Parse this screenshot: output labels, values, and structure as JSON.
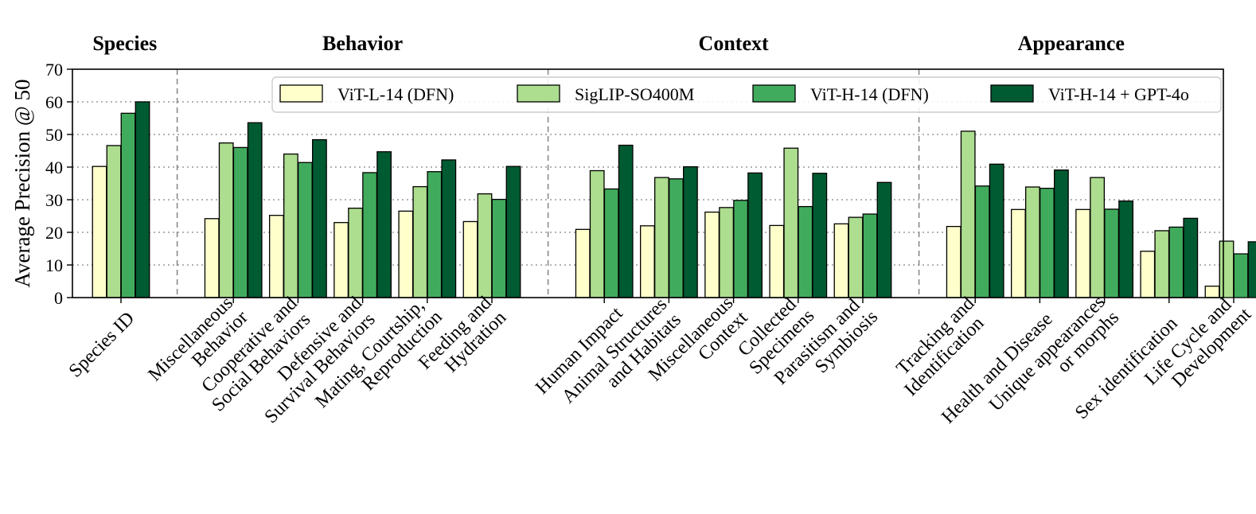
{
  "chart_data": {
    "type": "bar",
    "ylabel": "Average Precision @ 50",
    "ylim": [
      0,
      70
    ],
    "yticks": [
      0,
      10,
      20,
      30,
      40,
      50,
      60,
      70
    ],
    "grid": true,
    "legend_position": "top",
    "groups": [
      {
        "title": "Species",
        "categories": [
          0
        ]
      },
      {
        "title": "Behavior",
        "categories": [
          1,
          2,
          3,
          4,
          5
        ]
      },
      {
        "title": "Context",
        "categories": [
          6,
          7,
          8,
          9,
          10
        ]
      },
      {
        "title": "Appearance",
        "categories": [
          11,
          12,
          13,
          14,
          15
        ]
      }
    ],
    "categories": [
      [
        "Species ID"
      ],
      [
        "Miscellaneous",
        "Behavior"
      ],
      [
        "Cooperative and",
        "Social Behaviors"
      ],
      [
        "Defensive and",
        "Survival Behaviors"
      ],
      [
        "Mating, Courtship,",
        "Reproduction"
      ],
      [
        "Feeding and",
        "Hydration"
      ],
      [
        "Human Impact"
      ],
      [
        "Animal Structures",
        "and Habitats"
      ],
      [
        "Miscellaneous",
        "Context"
      ],
      [
        "Collected",
        "Specimens"
      ],
      [
        "Parasitism and",
        "Symbiosis"
      ],
      [
        "Tracking and",
        "Identification"
      ],
      [
        "Health and Disease"
      ],
      [
        "Unique appearances",
        "or morphs"
      ],
      [
        "Sex identification"
      ],
      [
        "Life Cycle and",
        "Development"
      ]
    ],
    "series": [
      {
        "name": "ViT-L-14 (DFN)",
        "color": "#ffffcc",
        "values": [
          40.2,
          24.2,
          25.2,
          23.0,
          26.5,
          23.3,
          20.9,
          22.0,
          26.2,
          22.1,
          22.6,
          21.8,
          27.0,
          27.0,
          14.2,
          3.5
        ]
      },
      {
        "name": "SigLIP-SO400M",
        "color": "#addd8e",
        "values": [
          46.6,
          47.4,
          44.0,
          27.4,
          34.0,
          31.8,
          38.9,
          36.8,
          27.6,
          45.8,
          24.6,
          51.0,
          33.9,
          36.8,
          20.5,
          17.3
        ]
      },
      {
        "name": "ViT-H-14 (DFN)",
        "color": "#41ab5d",
        "values": [
          56.5,
          46.0,
          41.4,
          38.3,
          38.6,
          30.1,
          33.3,
          36.4,
          29.8,
          27.9,
          25.6,
          34.2,
          33.5,
          27.1,
          21.6,
          13.4
        ]
      },
      {
        "name": "ViT-H-14 + GPT-4o",
        "color": "#005a32",
        "values": [
          60.0,
          53.6,
          48.4,
          44.7,
          42.2,
          40.2,
          46.7,
          40.1,
          38.2,
          38.1,
          35.3,
          40.9,
          39.1,
          29.6,
          24.3,
          17.1
        ]
      }
    ]
  }
}
